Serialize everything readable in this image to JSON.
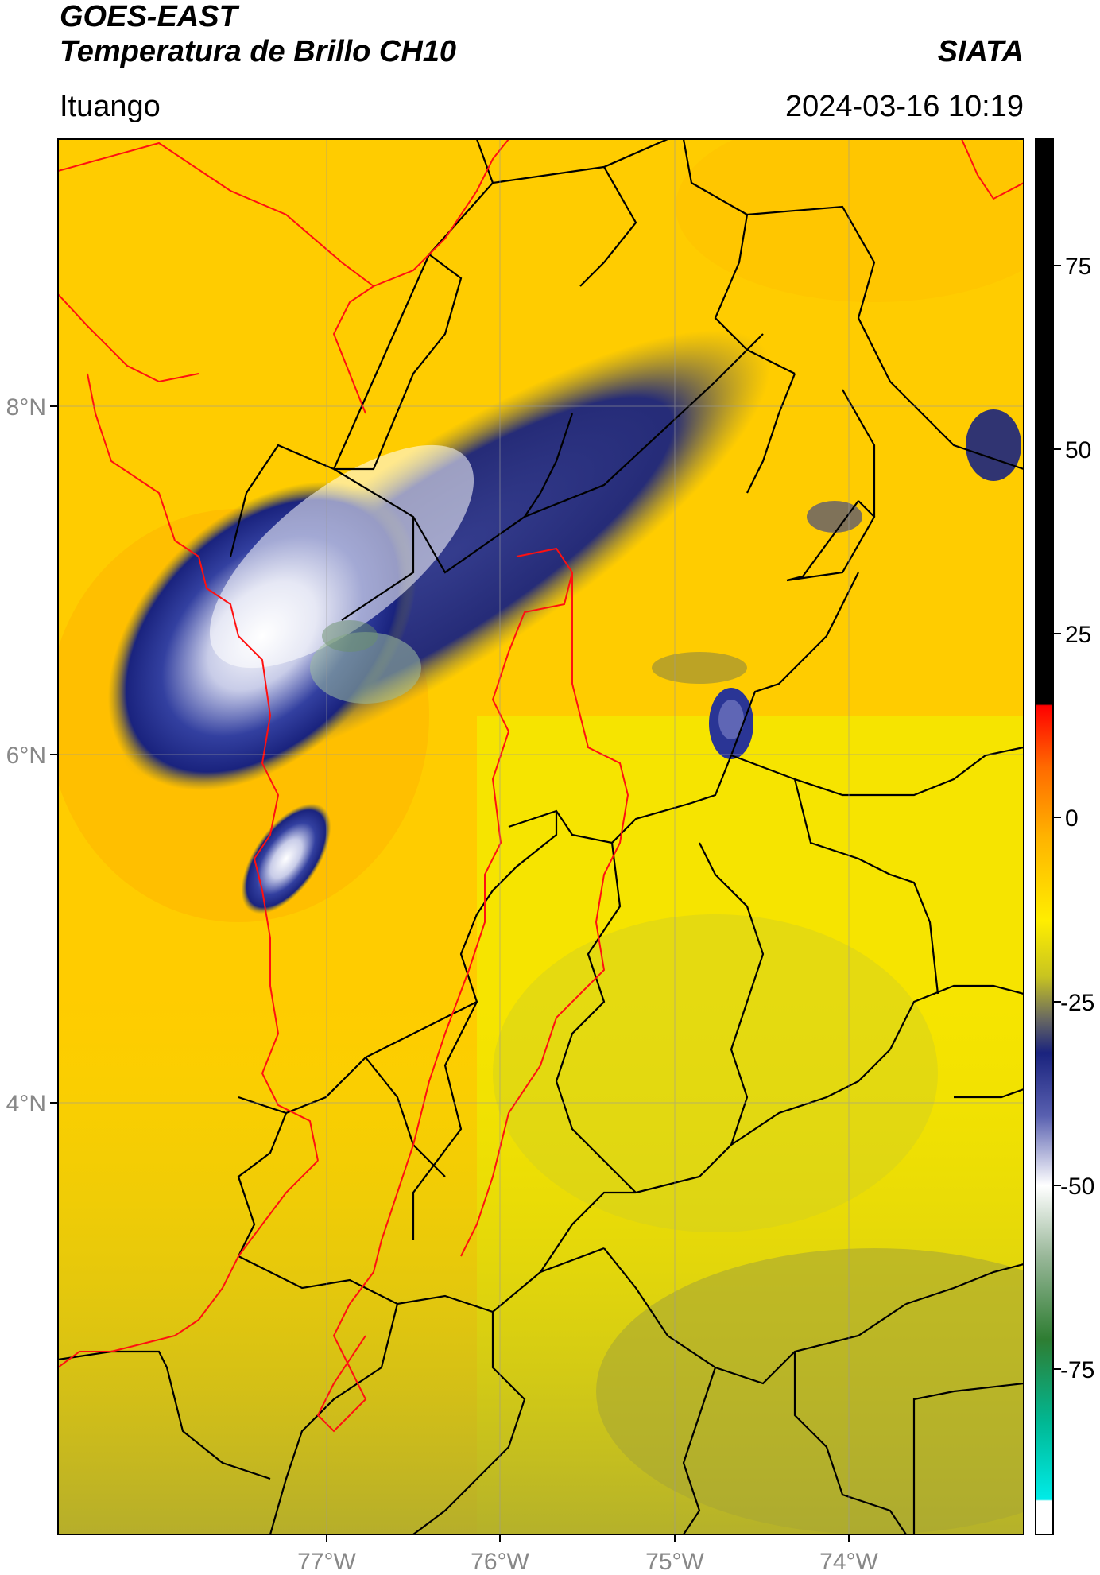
{
  "header": {
    "satellite": "GOES-EAST",
    "product": "Temperatura de Brillo CH10",
    "organization": "SIATA",
    "region": "Ituango",
    "datetime": "2024-03-16 10:19"
  },
  "map": {
    "longitude_ticks": [
      "77°W",
      "76°W",
      "75°W",
      "74°W"
    ],
    "latitude_ticks": [
      "8°N",
      "6°N",
      "4°N"
    ],
    "border_colors": {
      "country": "#000000",
      "highlight": "#ff0000"
    },
    "background_color": "#ffcc00"
  },
  "colorbar": {
    "ticks": [
      "75",
      "50",
      "25",
      "0",
      "-25",
      "-50",
      "-75"
    ],
    "colors": {
      "top": "#000000",
      "warm": "#ff0000",
      "mid": "#ffee00",
      "cold_blue": "#1a237e",
      "white": "#ffffff",
      "green": "#2e7d32",
      "cyan": "#00e5d4"
    }
  }
}
